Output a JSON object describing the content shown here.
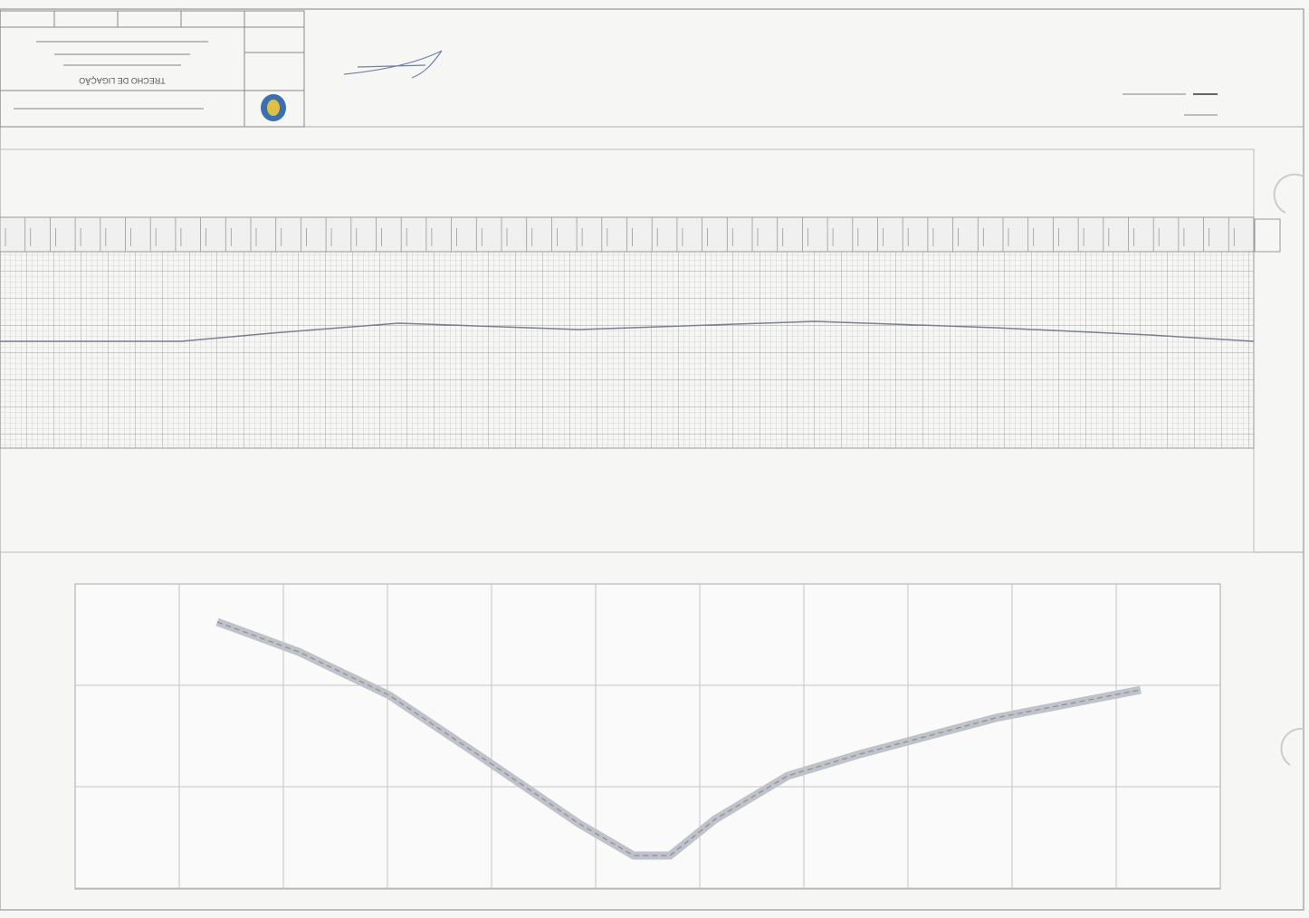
{
  "title_block": {
    "lines": [
      "TRECHO DE LIGAÇÃO"
    ]
  }
}
